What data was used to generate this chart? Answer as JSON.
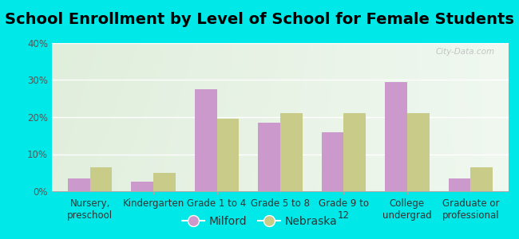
{
  "title": "School Enrollment by Level of School for Female Students",
  "categories": [
    "Nursery,\npreschool",
    "Kindergarten",
    "Grade 1 to 4",
    "Grade 5 to 8",
    "Grade 9 to\n12",
    "College\nundergrad",
    "Graduate or\nprofessional"
  ],
  "milford": [
    3.5,
    2.5,
    27.5,
    18.5,
    16.0,
    29.5,
    3.5
  ],
  "nebraska": [
    6.5,
    5.0,
    19.5,
    21.0,
    21.0,
    21.0,
    6.5
  ],
  "milford_color": "#cc99cc",
  "nebraska_color": "#c8cc88",
  "background_color": "#00e8e8",
  "plot_bg_topleft": "#e0eedc",
  "plot_bg_topright": "#f0f8f0",
  "plot_bg_bottom": "#f5faf0",
  "ylim": [
    0,
    40
  ],
  "yticks": [
    0,
    10,
    20,
    30,
    40
  ],
  "ytick_labels": [
    "0%",
    "10%",
    "20%",
    "30%",
    "40%"
  ],
  "bar_width": 0.35,
  "legend_labels": [
    "Milford",
    "Nebraska"
  ],
  "title_fontsize": 14,
  "tick_fontsize": 8.5,
  "legend_fontsize": 10,
  "watermark": "City-Data.com"
}
